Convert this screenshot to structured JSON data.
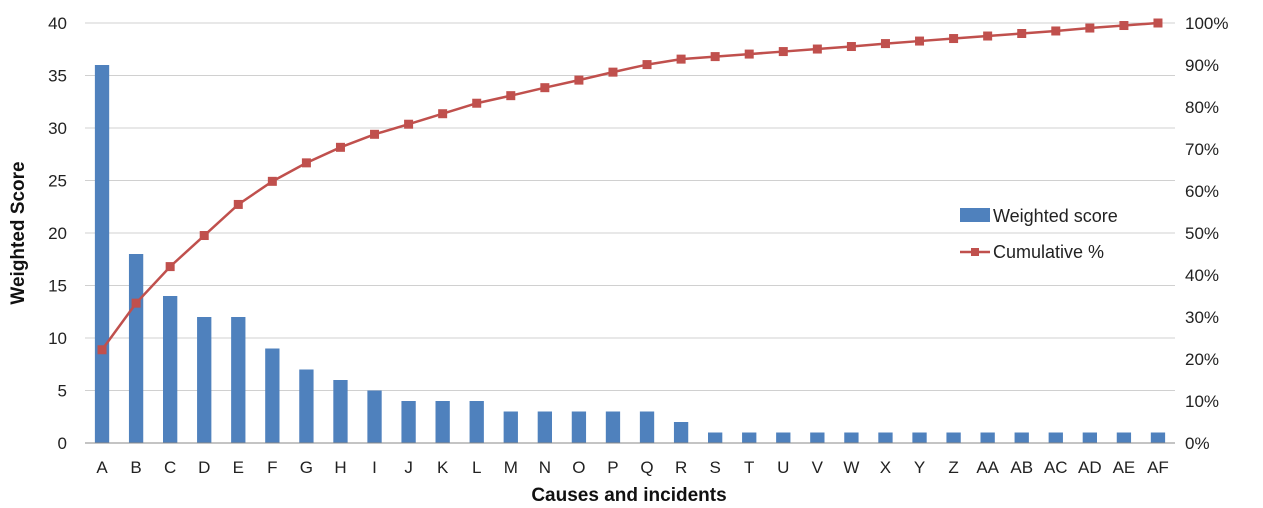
{
  "chart_data": {
    "type": "bar",
    "xlabel": "Causes and incidents",
    "ylabel": "Weighted Score",
    "ylim": [
      0,
      40
    ],
    "y_ticks": [
      0,
      5,
      10,
      15,
      20,
      25,
      30,
      35,
      40
    ],
    "y2lim": [
      0,
      100
    ],
    "y2_ticks": [
      "0%",
      "10%",
      "20%",
      "30%",
      "40%",
      "50%",
      "60%",
      "70%",
      "80%",
      "90%",
      "100%"
    ],
    "grid": true,
    "legend_position": "right",
    "categories": [
      "A",
      "B",
      "C",
      "D",
      "E",
      "F",
      "G",
      "H",
      "I",
      "J",
      "K",
      "L",
      "M",
      "N",
      "O",
      "P",
      "Q",
      "R",
      "S",
      "T",
      "U",
      "V",
      "W",
      "X",
      "Y",
      "Z",
      "AA",
      "AB",
      "AC",
      "AD",
      "AE",
      "AF"
    ],
    "series": [
      {
        "name": "Weighted score",
        "kind": "bar",
        "axis": "left",
        "color": "#4F81BD",
        "values": [
          36,
          18,
          14,
          12,
          12,
          9,
          7,
          6,
          5,
          4,
          4,
          4,
          3,
          3,
          3,
          3,
          3,
          2,
          1,
          1,
          1,
          1,
          1,
          1,
          1,
          1,
          1,
          1,
          1,
          1,
          1,
          1
        ]
      },
      {
        "name": "Cumulative %",
        "kind": "line",
        "axis": "right",
        "color": "#C0504D",
        "values": [
          22.2,
          33.3,
          42.0,
          49.4,
          56.8,
          62.3,
          66.7,
          70.4,
          73.5,
          75.9,
          78.4,
          80.9,
          82.7,
          84.6,
          86.4,
          88.3,
          90.1,
          91.4,
          92.0,
          92.6,
          93.2,
          93.8,
          94.4,
          95.1,
          95.7,
          96.3,
          96.9,
          97.5,
          98.1,
          98.8,
          99.4,
          100.0
        ]
      }
    ]
  }
}
